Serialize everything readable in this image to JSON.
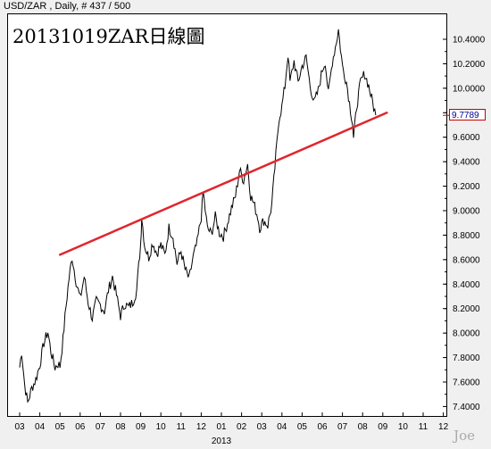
{
  "header": {
    "text": "USD/ZAR , Daily, # 437 / 500"
  },
  "watermark": "Joe",
  "chart_data": {
    "type": "line",
    "title": "20131019ZAR日線圖",
    "last_value_label": "9.7789",
    "x_tick_labels": [
      "03",
      "04",
      "05",
      "06",
      "07",
      "08",
      "09",
      "10",
      "11",
      "12",
      "01",
      "02",
      "03",
      "04",
      "05",
      "06",
      "07",
      "08",
      "09",
      "10",
      "11",
      "12"
    ],
    "x_year_label": "2013",
    "y_tick_labels": [
      "10.4000",
      "10.2000",
      "10.0000",
      "9.8000",
      "9.6000",
      "9.4000",
      "9.2000",
      "9.0000",
      "8.8000",
      "8.6000",
      "8.4000",
      "8.2000",
      "8.0000",
      "7.8000",
      "7.6000",
      "7.4000"
    ],
    "ylim": [
      7.4,
      10.5
    ],
    "series": [
      {
        "values": [
          [
            0,
            7.72
          ],
          [
            0.1,
            7.85
          ],
          [
            0.25,
            7.58
          ],
          [
            0.4,
            7.43
          ],
          [
            0.6,
            7.55
          ],
          [
            0.8,
            7.62
          ],
          [
            1.0,
            7.74
          ],
          [
            1.2,
            7.92
          ],
          [
            1.4,
            8.01
          ],
          [
            1.55,
            7.85
          ],
          [
            1.75,
            7.72
          ],
          [
            1.9,
            7.75
          ],
          [
            2.0,
            7.73
          ],
          [
            2.15,
            7.95
          ],
          [
            2.3,
            8.22
          ],
          [
            2.45,
            8.45
          ],
          [
            2.6,
            8.62
          ],
          [
            2.8,
            8.42
          ],
          [
            3.0,
            8.28
          ],
          [
            3.2,
            8.46
          ],
          [
            3.4,
            8.25
          ],
          [
            3.6,
            8.12
          ],
          [
            3.8,
            8.26
          ],
          [
            4.0,
            8.23
          ],
          [
            4.2,
            8.18
          ],
          [
            4.4,
            8.35
          ],
          [
            4.6,
            8.46
          ],
          [
            4.8,
            8.31
          ],
          [
            5.0,
            8.14
          ],
          [
            5.2,
            8.24
          ],
          [
            5.4,
            8.21
          ],
          [
            5.6,
            8.25
          ],
          [
            5.8,
            8.35
          ],
          [
            6.0,
            8.74
          ],
          [
            6.05,
            8.95
          ],
          [
            6.2,
            8.71
          ],
          [
            6.4,
            8.62
          ],
          [
            6.6,
            8.74
          ],
          [
            6.8,
            8.65
          ],
          [
            7.0,
            8.72
          ],
          [
            7.2,
            8.64
          ],
          [
            7.4,
            8.86
          ],
          [
            7.6,
            8.79
          ],
          [
            7.8,
            8.57
          ],
          [
            8.0,
            8.67
          ],
          [
            8.2,
            8.52
          ],
          [
            8.4,
            8.44
          ],
          [
            8.6,
            8.62
          ],
          [
            8.8,
            8.74
          ],
          [
            9.0,
            8.95
          ],
          [
            9.1,
            9.15
          ],
          [
            9.3,
            8.86
          ],
          [
            9.5,
            8.81
          ],
          [
            9.7,
            8.95
          ],
          [
            9.9,
            8.82
          ],
          [
            10.1,
            8.79
          ],
          [
            10.3,
            8.9
          ],
          [
            10.5,
            9.02
          ],
          [
            10.7,
            9.12
          ],
          [
            10.9,
            9.33
          ],
          [
            11.1,
            9.25
          ],
          [
            11.3,
            9.38
          ],
          [
            11.45,
            9.12
          ],
          [
            11.6,
            9.06
          ],
          [
            11.8,
            8.95
          ],
          [
            11.9,
            8.86
          ],
          [
            12.1,
            8.92
          ],
          [
            12.3,
            8.88
          ],
          [
            12.5,
            9.05
          ],
          [
            12.7,
            9.45
          ],
          [
            12.85,
            9.75
          ],
          [
            13.0,
            9.85
          ],
          [
            13.15,
            10.02
          ],
          [
            13.3,
            10.28
          ],
          [
            13.4,
            10.05
          ],
          [
            13.6,
            10.22
          ],
          [
            13.8,
            10.05
          ],
          [
            14.0,
            10.18
          ],
          [
            14.2,
            10.25
          ],
          [
            14.4,
            10.02
          ],
          [
            14.6,
            9.88
          ],
          [
            14.8,
            9.98
          ],
          [
            15.0,
            10.15
          ],
          [
            15.15,
            10.22
          ],
          [
            15.3,
            9.95
          ],
          [
            15.5,
            10.22
          ],
          [
            15.7,
            10.38
          ],
          [
            15.8,
            10.48
          ],
          [
            16.0,
            10.18
          ],
          [
            16.2,
            10.05
          ],
          [
            16.35,
            9.88
          ],
          [
            16.5,
            9.72
          ],
          [
            16.55,
            9.58
          ],
          [
            16.7,
            9.85
          ],
          [
            16.9,
            10.05
          ],
          [
            17.1,
            10.12
          ],
          [
            17.3,
            10.02
          ],
          [
            17.5,
            9.88
          ],
          [
            17.65,
            9.78
          ]
        ]
      }
    ],
    "trendline": {
      "color": "#e0262e",
      "from": [
        2.0,
        8.64
      ],
      "to": [
        18.2,
        9.8
      ]
    },
    "line_color": "#000000",
    "grid": false
  }
}
